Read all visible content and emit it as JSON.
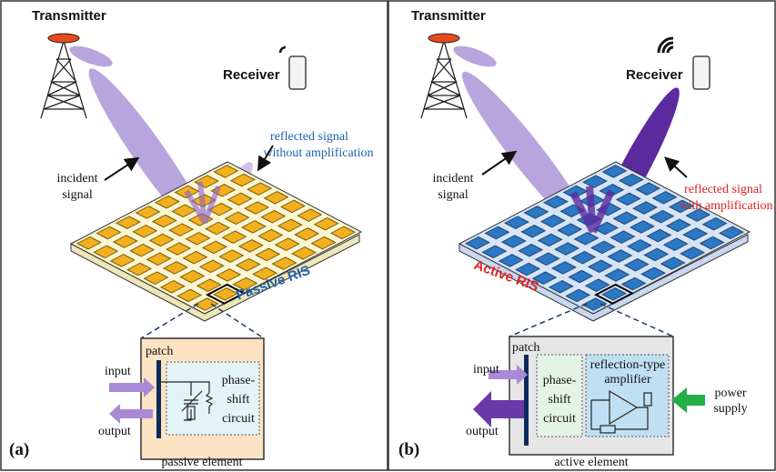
{
  "panels": [
    {
      "label": "(a)",
      "transmitter": "Transmitter",
      "receiver": "Receiver",
      "incident": [
        "incident",
        "signal"
      ],
      "reflected": [
        "reflected signal",
        "without amplification"
      ],
      "ris": "Passive RIS",
      "element": {
        "patch": "patch",
        "input": "input",
        "output": "output",
        "circuit": [
          "phase-",
          "shift",
          "circuit"
        ],
        "caption": "passive element"
      }
    },
    {
      "label": "(b)",
      "transmitter": "Transmitter",
      "receiver": "Receiver",
      "incident": [
        "incident",
        "signal"
      ],
      "reflected": [
        "reflected signal",
        "with amplification"
      ],
      "ris": "Active RIS",
      "element": {
        "patch": "patch",
        "input": "input",
        "output": "output",
        "circuit": [
          "phase-",
          "shift",
          "circuit"
        ],
        "amplifier": [
          "reflection-type",
          "amplifier"
        ],
        "power": [
          "power",
          "supply"
        ],
        "caption": "active element"
      }
    }
  ]
}
